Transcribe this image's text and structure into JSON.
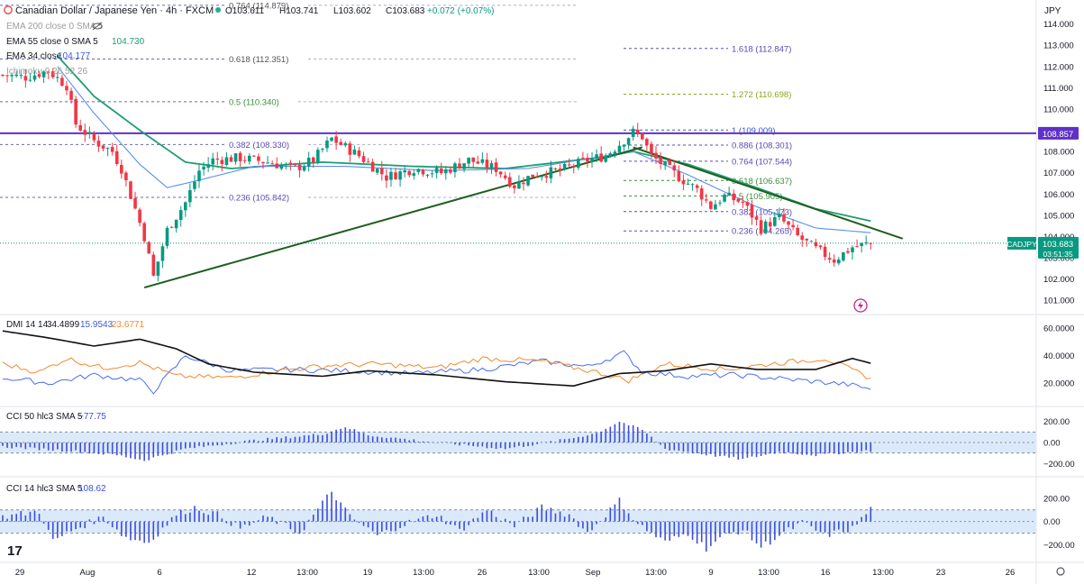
{
  "header": {
    "title": "Canadian Dollar / Japanese Yen · 4h · FXCM",
    "ohlc": {
      "o": "O103.611",
      "h": "H103.741",
      "l": "L103.602",
      "c": "C103.683",
      "chg": "+0.072 (+0.07%)"
    },
    "currency": "JPY"
  },
  "colors": {
    "up": "#089981",
    "down": "#f23645",
    "ema200": "#9c9c9c",
    "ema55": "#1e9e6e",
    "ema34": "#5b8ff0",
    "hline": "#6030c8",
    "trend": "#1f5f1f",
    "dmi_adx": "#111111",
    "dmi_plus": "#4a6ef0",
    "dmi_minus": "#f28a2c",
    "cci": "#3b4de0",
    "band": "#dbeafa"
  },
  "legend": {
    "ema200": "EMA 200 close 0 SMA 5",
    "ema55": "EMA 55 close 0 SMA 5",
    "ema55_val": "104.730",
    "ema34": "EMA 34 close",
    "ema34_val": "104.177",
    "ichimoku": "Ichimoku 9 26 52 26",
    "dmi": "DMI 14 14",
    "dmi_v1": "34.4899",
    "dmi_v2": "15.9543",
    "dmi_v3": "23.6771",
    "cci50": "CCI 50 hlc3 SMA 5",
    "cci50_val": "−77.75",
    "cci14": "CCI 14 hlc3 SMA 5",
    "cci14_val": "108.62"
  },
  "fib_left": [
    {
      "label": "0.764 (114.879)",
      "v": 114.879
    },
    {
      "label": "0.618 (112.351)",
      "v": 112.351
    },
    {
      "label": "0.5 (110.340)",
      "v": 110.34
    },
    {
      "label": "0.382 (108.330)",
      "v": 108.33
    },
    {
      "label": "0.236 (105.842)",
      "v": 105.842
    }
  ],
  "fib_right": [
    {
      "label": "1.618 (112.847)",
      "v": 112.847
    },
    {
      "label": "1.272 (110.698)",
      "v": 110.698
    },
    {
      "label": "1 (109.009)",
      "v": 109.009
    },
    {
      "label": "0.886 (108.301)",
      "v": 108.301
    },
    {
      "label": "0.764 (107.544)",
      "v": 107.544
    },
    {
      "label": "0.618 (106.637)",
      "v": 106.637
    },
    {
      "label": "0.5 (105.905)",
      "v": 105.905
    },
    {
      "label": "0.382 (105.173)",
      "v": 105.173
    },
    {
      "label": "0.236 (104.265)",
      "v": 104.265
    }
  ],
  "price_axis": [
    "114.000",
    "113.000",
    "112.000",
    "111.000",
    "110.000",
    "109.000",
    "108.000",
    "107.000",
    "106.000",
    "105.000",
    "104.000",
    "103.000",
    "102.000",
    "101.000"
  ],
  "horizontal_level": {
    "label": "108.857",
    "v": 108.857
  },
  "current_price": {
    "symbol": "CADJPY",
    "price": "103.683",
    "timer": "03:51:35"
  },
  "dmi_axis": [
    "60.0000",
    "40.0000",
    "20.0000"
  ],
  "cci_axis": [
    "200.00",
    "0.00",
    "−200.00"
  ],
  "time_axis": [
    "29",
    "Aug",
    "6",
    "12",
    "13:00",
    "19",
    "13:00",
    "26",
    "13:00",
    "Sep",
    "13:00",
    "9",
    "13:00",
    "16",
    "13:00",
    "23",
    "26"
  ],
  "chart_data": {
    "type": "candlestick",
    "timeframe": "4h",
    "ylim": [
      100.5,
      115.0
    ],
    "close_anchors": [
      [
        0,
        111.6
      ],
      [
        5,
        111.5
      ],
      [
        10,
        111.8
      ],
      [
        14,
        111.1
      ],
      [
        16,
        109.3
      ],
      [
        20,
        108.5
      ],
      [
        24,
        108.0
      ],
      [
        26,
        107.2
      ],
      [
        29,
        105.3
      ],
      [
        31,
        104.0
      ],
      [
        33,
        102.1
      ],
      [
        36,
        104.3
      ],
      [
        40,
        105.6
      ],
      [
        43,
        107.1
      ],
      [
        46,
        107.6
      ],
      [
        52,
        107.7
      ],
      [
        58,
        107.5
      ],
      [
        64,
        107.2
      ],
      [
        68,
        107.6
      ],
      [
        72,
        108.6
      ],
      [
        78,
        107.8
      ],
      [
        84,
        106.8
      ],
      [
        90,
        107.2
      ],
      [
        96,
        107.0
      ],
      [
        102,
        107.6
      ],
      [
        108,
        107.2
      ],
      [
        112,
        106.4
      ],
      [
        116,
        106.9
      ],
      [
        122,
        107.1
      ],
      [
        128,
        107.6
      ],
      [
        132,
        107.8
      ],
      [
        138,
        108.9
      ],
      [
        140,
        108.7
      ],
      [
        142,
        107.8
      ],
      [
        148,
        106.8
      ],
      [
        152,
        106.2
      ],
      [
        155,
        105.4
      ],
      [
        158,
        105.9
      ],
      [
        162,
        105.6
      ],
      [
        166,
        104.4
      ],
      [
        170,
        104.9
      ],
      [
        174,
        104.0
      ],
      [
        178,
        103.4
      ],
      [
        182,
        102.9
      ],
      [
        186,
        103.5
      ],
      [
        190,
        103.68
      ]
    ],
    "ema55_anchors": [
      [
        12,
        112.5
      ],
      [
        20,
        110.6
      ],
      [
        30,
        109.0
      ],
      [
        40,
        107.5
      ],
      [
        50,
        107.2
      ],
      [
        70,
        107.5
      ],
      [
        90,
        107.3
      ],
      [
        110,
        107.2
      ],
      [
        130,
        107.7
      ],
      [
        138,
        108.0
      ],
      [
        150,
        107.4
      ],
      [
        165,
        106.3
      ],
      [
        178,
        105.3
      ],
      [
        190,
        104.73
      ]
    ],
    "ema34_anchors": [
      [
        12,
        112.0
      ],
      [
        20,
        109.8
      ],
      [
        30,
        107.4
      ],
      [
        36,
        106.3
      ],
      [
        42,
        106.6
      ],
      [
        55,
        107.3
      ],
      [
        75,
        107.3
      ],
      [
        95,
        107.1
      ],
      [
        115,
        107.2
      ],
      [
        132,
        107.8
      ],
      [
        138,
        108.0
      ],
      [
        150,
        106.9
      ],
      [
        165,
        105.4
      ],
      [
        178,
        104.4
      ],
      [
        190,
        104.18
      ]
    ],
    "trendlines": [
      {
        "name": "support",
        "from": [
          31,
          101.6
        ],
        "to": [
          140,
          108.2
        ]
      },
      {
        "name": "resistance",
        "from": [
          138,
          108.2
        ],
        "to": [
          197,
          103.9
        ]
      }
    ],
    "dmi_series": {
      "adx": [
        [
          0,
          58
        ],
        [
          10,
          53
        ],
        [
          20,
          47
        ],
        [
          30,
          52
        ],
        [
          38,
          45
        ],
        [
          45,
          34
        ],
        [
          55,
          28
        ],
        [
          70,
          25
        ],
        [
          80,
          29
        ],
        [
          95,
          26
        ],
        [
          110,
          21
        ],
        [
          125,
          18
        ],
        [
          135,
          27
        ],
        [
          145,
          29
        ],
        [
          155,
          34
        ],
        [
          165,
          30
        ],
        [
          178,
          30
        ],
        [
          186,
          38
        ],
        [
          190,
          34.49
        ]
      ],
      "plus": [
        [
          0,
          24
        ],
        [
          10,
          20
        ],
        [
          20,
          26
        ],
        [
          30,
          22
        ],
        [
          33,
          14
        ],
        [
          40,
          40
        ],
        [
          50,
          29
        ],
        [
          62,
          30
        ],
        [
          75,
          29
        ],
        [
          90,
          27
        ],
        [
          105,
          30
        ],
        [
          118,
          36
        ],
        [
          128,
          32
        ],
        [
          136,
          42
        ],
        [
          140,
          28
        ],
        [
          150,
          25
        ],
        [
          160,
          26
        ],
        [
          175,
          22
        ],
        [
          185,
          19
        ],
        [
          190,
          15.95
        ]
      ],
      "minus": [
        [
          0,
          34
        ],
        [
          8,
          28
        ],
        [
          14,
          38
        ],
        [
          22,
          31
        ],
        [
          30,
          35
        ],
        [
          38,
          25
        ],
        [
          50,
          24
        ],
        [
          60,
          29
        ],
        [
          72,
          33
        ],
        [
          82,
          34
        ],
        [
          95,
          31
        ],
        [
          105,
          38
        ],
        [
          118,
          36
        ],
        [
          130,
          28
        ],
        [
          137,
          22
        ],
        [
          145,
          34
        ],
        [
          158,
          30
        ],
        [
          168,
          34
        ],
        [
          180,
          38
        ],
        [
          190,
          23.68
        ]
      ]
    },
    "cci50_series": [
      [
        0,
        -40
      ],
      [
        15,
        -80
      ],
      [
        25,
        -120
      ],
      [
        31,
        -170
      ],
      [
        40,
        -60
      ],
      [
        55,
        20
      ],
      [
        70,
        80
      ],
      [
        75,
        150
      ],
      [
        80,
        70
      ],
      [
        95,
        0
      ],
      [
        110,
        -60
      ],
      [
        122,
        20
      ],
      [
        130,
        90
      ],
      [
        135,
        200
      ],
      [
        140,
        120
      ],
      [
        145,
        -60
      ],
      [
        155,
        -120
      ],
      [
        162,
        -160
      ],
      [
        170,
        -90
      ],
      [
        178,
        -120
      ],
      [
        186,
        -90
      ],
      [
        190,
        -77.75
      ]
    ],
    "cci14_series": [
      [
        0,
        40
      ],
      [
        8,
        90
      ],
      [
        11,
        -170
      ],
      [
        15,
        -80
      ],
      [
        22,
        40
      ],
      [
        27,
        -140
      ],
      [
        32,
        -180
      ],
      [
        38,
        60
      ],
      [
        42,
        120
      ],
      [
        47,
        60
      ],
      [
        52,
        -60
      ],
      [
        58,
        40
      ],
      [
        65,
        -100
      ],
      [
        72,
        260
      ],
      [
        76,
        40
      ],
      [
        82,
        -120
      ],
      [
        88,
        -20
      ],
      [
        95,
        60
      ],
      [
        100,
        -80
      ],
      [
        106,
        100
      ],
      [
        112,
        -40
      ],
      [
        118,
        120
      ],
      [
        124,
        60
      ],
      [
        128,
        -100
      ],
      [
        135,
        180
      ],
      [
        139,
        -20
      ],
      [
        145,
        -180
      ],
      [
        150,
        -100
      ],
      [
        154,
        -230
      ],
      [
        158,
        -120
      ],
      [
        162,
        -70
      ],
      [
        166,
        -220
      ],
      [
        170,
        -120
      ],
      [
        175,
        -10
      ],
      [
        180,
        -120
      ],
      [
        186,
        -60
      ],
      [
        190,
        108.62
      ]
    ]
  }
}
